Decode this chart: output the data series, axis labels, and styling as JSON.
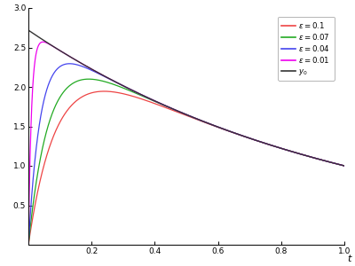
{
  "epsilons": [
    0.1,
    0.07,
    0.04,
    0.01
  ],
  "colors": [
    "#ee4444",
    "#22aa22",
    "#4444ee",
    "#ee00ee"
  ],
  "outer_color": "#333333",
  "t_min": 0.0,
  "t_max": 1.0,
  "y_min": 0.0,
  "y_max": 3.0,
  "xlabel": "t",
  "n_points": 3000,
  "background_color": "#ffffff",
  "linewidth": 0.9,
  "outer_linewidth": 1.0,
  "xticks": [
    0.2,
    0.4,
    0.6,
    0.8,
    1.0
  ],
  "yticks": [
    0.5,
    1.0,
    1.5,
    2.0,
    2.5,
    3.0
  ],
  "legend_eps": [
    0.1,
    0.07,
    0.04,
    0.01
  ]
}
